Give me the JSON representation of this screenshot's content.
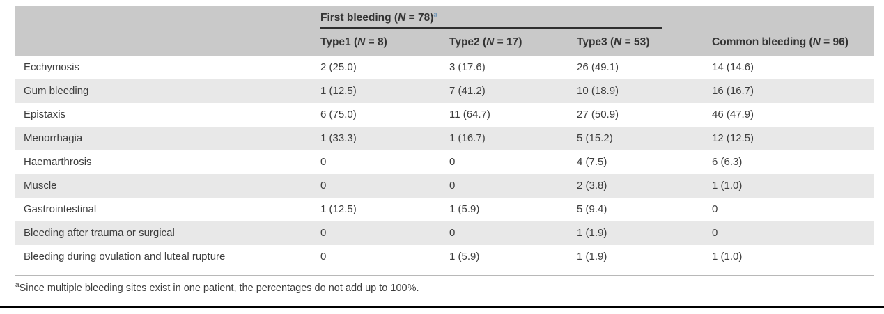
{
  "header": {
    "spanner": {
      "pre": "First bleeding (",
      "n": "N",
      "post": " = 78)",
      "marker": "a"
    },
    "columns": [
      {
        "pre": "Type1 (",
        "n": "N",
        "post": " = 8)"
      },
      {
        "pre": "Type2 (",
        "n": "N",
        "post": " = 17)"
      },
      {
        "pre": "Type3 (",
        "n": "N",
        "post": " = 53)"
      },
      {
        "pre": "Common bleeding (",
        "n": "N",
        "post": " = 96)"
      }
    ]
  },
  "rows": [
    {
      "label": "Ecchymosis",
      "values": [
        "2 (25.0)",
        "3 (17.6)",
        "26 (49.1)",
        "14 (14.6)"
      ]
    },
    {
      "label": "Gum bleeding",
      "values": [
        "1 (12.5)",
        "7 (41.2)",
        "10 (18.9)",
        "16 (16.7)"
      ]
    },
    {
      "label": "Epistaxis",
      "values": [
        "6 (75.0)",
        "11 (64.7)",
        "27 (50.9)",
        "46 (47.9)"
      ]
    },
    {
      "label": "Menorrhagia",
      "values": [
        "1 (33.3)",
        "1 (16.7)",
        "5 (15.2)",
        "12 (12.5)"
      ]
    },
    {
      "label": "Haemarthrosis",
      "values": [
        "0",
        "0",
        "4 (7.5)",
        "6 (6.3)"
      ]
    },
    {
      "label": "Muscle",
      "values": [
        "0",
        "0",
        "2 (3.8)",
        "1 (1.0)"
      ]
    },
    {
      "label": "Gastrointestinal",
      "values": [
        "1 (12.5)",
        "1 (5.9)",
        "5 (9.4)",
        "0"
      ]
    },
    {
      "label": "Bleeding after trauma or surgical",
      "values": [
        "0",
        "0",
        "1 (1.9)",
        "0"
      ]
    },
    {
      "label": "Bleeding during ovulation and luteal rupture",
      "values": [
        "0",
        "1 (5.9)",
        "1 (1.9)",
        "1 (1.0)"
      ]
    }
  ],
  "footnote": {
    "marker": "a",
    "text": "Since multiple bleeding sites exist in one patient, the percentages do not add up to 100%."
  },
  "colors": {
    "header_bg": "#c9c9c9",
    "stripe_bg": "#e8e8e8",
    "text": "#3d3d3d",
    "marker_blue": "#7297b8",
    "bottom_rule": "#000000"
  }
}
